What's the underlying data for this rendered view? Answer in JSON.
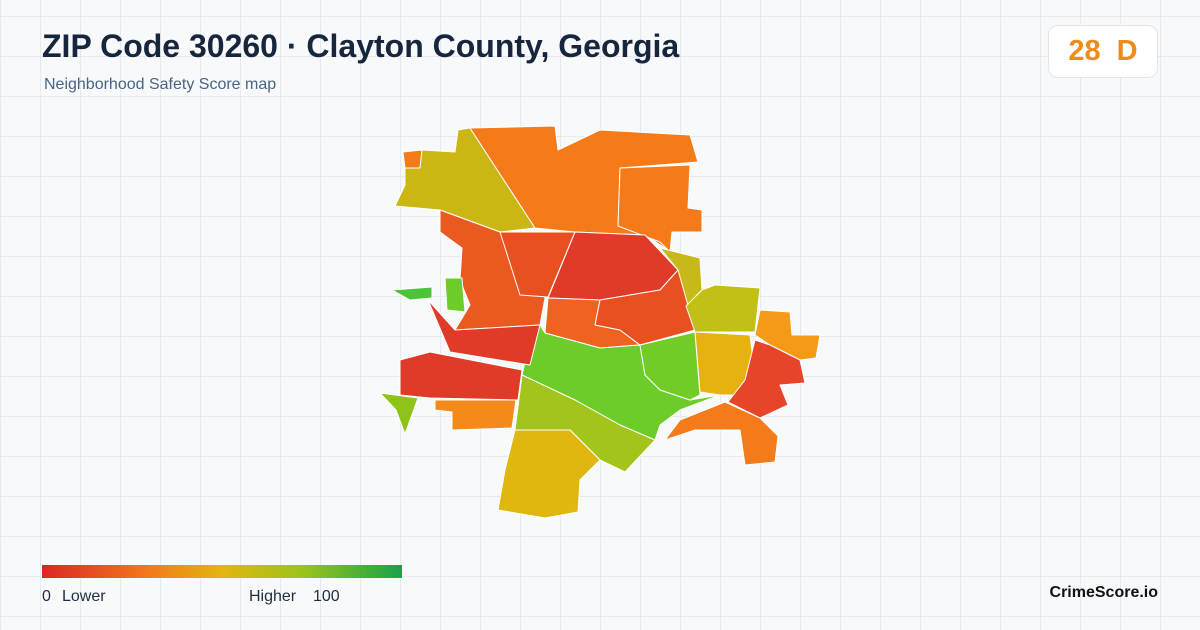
{
  "header": {
    "title": "ZIP Code 30260 · Clayton County, Georgia",
    "subtitle": "Neighborhood Safety Score map"
  },
  "score": {
    "value": "28",
    "grade": "D"
  },
  "legend": {
    "min": "0",
    "min_label": "Lower",
    "max_label": "Higher",
    "max": "100"
  },
  "brand": "CrimeScore.io"
}
